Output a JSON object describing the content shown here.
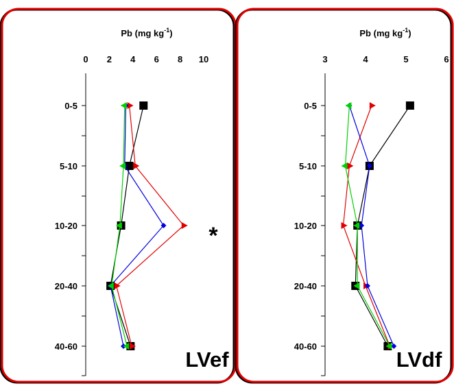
{
  "colors": {
    "frame": "#e00000",
    "frame_shadow": "#000000",
    "axis": "#000000",
    "series": [
      "#000000",
      "#e00000",
      "#0000e0",
      "#00d000"
    ]
  },
  "chart_data": [
    {
      "type": "line",
      "orientation": "depth-profile",
      "panel_label": "LVef",
      "title_main": "Pb (mg kg",
      "title_sup": "-1",
      "title_end": ")",
      "xlim": [
        0,
        10
      ],
      "xticks": [
        "0",
        "2",
        "4",
        "6",
        "8",
        "10"
      ],
      "depth_labels": [
        "0-5",
        "5-10",
        "10-20",
        "20-40",
        "40-60"
      ],
      "annotation": "*",
      "series": [
        {
          "marker": "square",
          "color": "#000000",
          "values": [
            4.9,
            3.7,
            3.0,
            2.1,
            3.8
          ]
        },
        {
          "marker": "triangle-right",
          "color": "#e00000",
          "values": [
            3.7,
            4.2,
            8.3,
            2.6,
            3.9
          ]
        },
        {
          "marker": "diamond",
          "color": "#0000e0",
          "values": [
            3.4,
            3.3,
            6.6,
            2.1,
            3.2
          ]
        },
        {
          "marker": "triangle-left",
          "color": "#00d000",
          "values": [
            3.3,
            3.2,
            2.9,
            2.2,
            3.5
          ]
        }
      ]
    },
    {
      "type": "line",
      "orientation": "depth-profile",
      "panel_label": "LVdf",
      "title_main": "Pb (mg kg",
      "title_sup": "-1",
      "title_end": ")",
      "xlim": [
        3,
        6
      ],
      "xticks": [
        "3",
        "4",
        "5",
        "6"
      ],
      "depth_labels": [
        "0-5",
        "5-10",
        "10-20",
        "20-40",
        "40-60"
      ],
      "annotation": "",
      "series": [
        {
          "marker": "square",
          "color": "#000000",
          "values": [
            5.1,
            4.1,
            3.8,
            3.75,
            4.55
          ]
        },
        {
          "marker": "triangle-right",
          "color": "#e00000",
          "values": [
            4.15,
            3.6,
            3.45,
            4.0,
            4.6
          ]
        },
        {
          "marker": "diamond",
          "color": "#0000e0",
          "values": [
            3.6,
            4.1,
            3.9,
            4.05,
            4.7
          ]
        },
        {
          "marker": "triangle-left",
          "color": "#00d000",
          "values": [
            3.6,
            3.5,
            3.8,
            3.8,
            4.6
          ]
        }
      ]
    }
  ]
}
